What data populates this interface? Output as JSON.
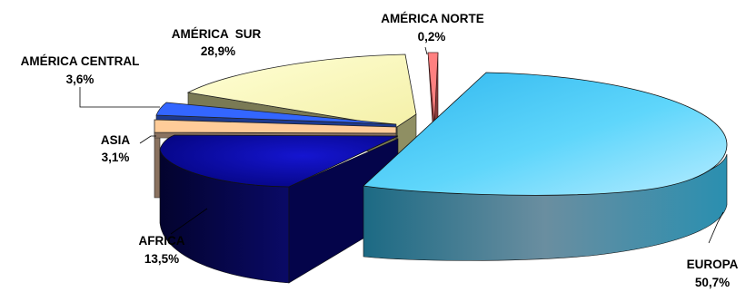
{
  "chart_data": {
    "type": "pie",
    "style": "3d-exploded",
    "slices": [
      {
        "label": "EUROPA",
        "value": 50.7,
        "value_label": "50,7%",
        "color": "#38c4f4",
        "side_color": "#1d6d86"
      },
      {
        "label": "AFRICA",
        "value": 13.5,
        "value_label": "13,5%",
        "color": "#0a0a9a",
        "side_color": "#05054a"
      },
      {
        "label": "ASIA",
        "value": 3.1,
        "value_label": "3,1%",
        "color": "#ffcc99",
        "side_color": "#8a7260"
      },
      {
        "label": "AMÉRICA CENTRAL",
        "value": 3.6,
        "value_label": "3,6%",
        "color": "#3366ff",
        "side_color": "#1d3a8f"
      },
      {
        "label": "AMÉRICA  SUR",
        "value": 28.9,
        "value_label": "28,9%",
        "color": "#ffffcc",
        "side_color": "#8f8f63"
      },
      {
        "label": "AMÉRICA NORTE",
        "value": 0.2,
        "value_label": "0,2%",
        "color": "#ff8080",
        "side_color": "#8a3a3a"
      }
    ]
  }
}
